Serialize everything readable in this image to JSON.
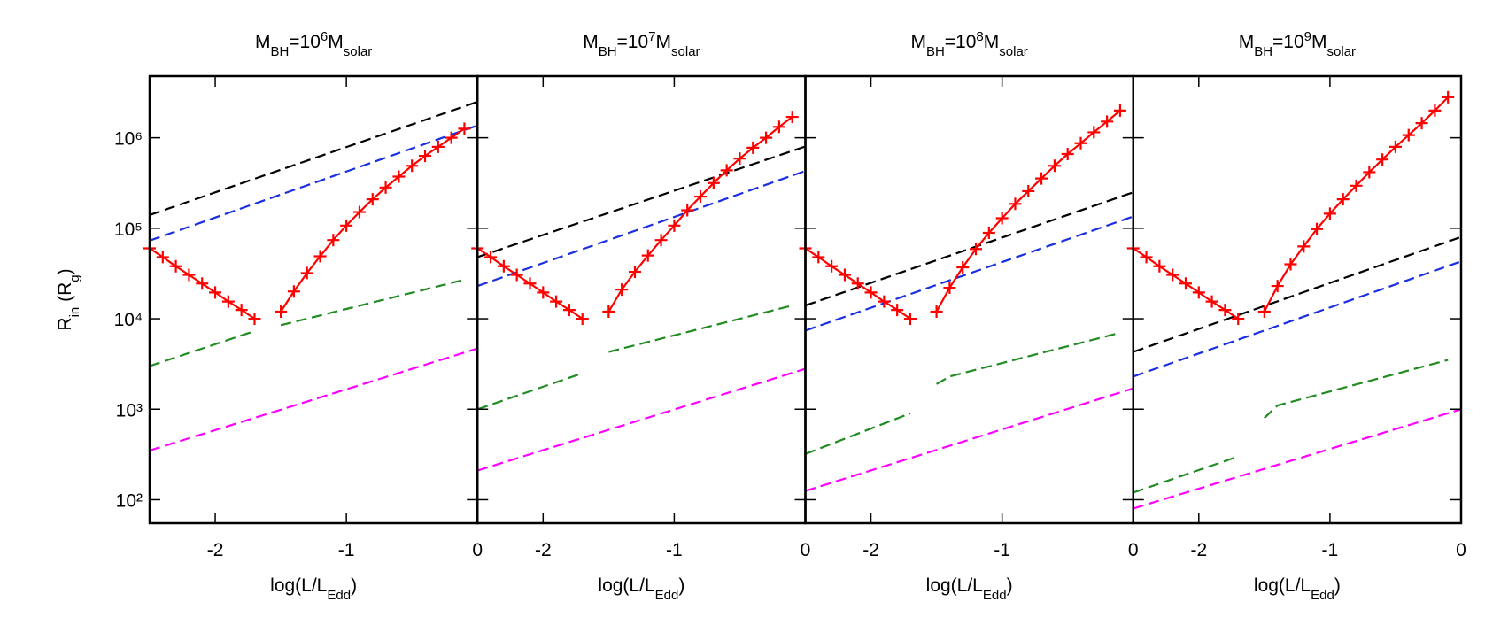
{
  "chart_data": [
    {
      "type": "line",
      "title": [
        "M",
        "BH",
        "=10",
        "6",
        "M",
        "solar"
      ],
      "xlabel": [
        "log(L/L",
        "Edd",
        ")"
      ],
      "ylabel": [
        "R",
        "in",
        " (R",
        "g",
        ")"
      ],
      "xlim": [
        -2.5,
        0
      ],
      "xticks": [
        -2,
        -1,
        0
      ],
      "ylim": [
        55,
        4800000
      ],
      "log_y": true,
      "yticks": [
        {
          "value": 100,
          "label": "10²"
        },
        {
          "value": 1000,
          "label": "10³"
        },
        {
          "value": 10000,
          "label": "10⁴"
        },
        {
          "value": 100000,
          "label": "10⁵"
        },
        {
          "value": 1000000,
          "label": "10⁶"
        }
      ],
      "series": [
        {
          "color": "#000000",
          "dash": true,
          "x": [
            -2.5,
            0
          ],
          "values": [
            140000,
            2500000
          ]
        },
        {
          "color": "#1a2fe0",
          "dash": true,
          "x": [
            -2.5,
            0
          ],
          "values": [
            73000,
            1370000
          ]
        },
        {
          "color": "#228b22",
          "dash": true,
          "x": [
            -2.5,
            -1.7,
            -1.6,
            -1.5,
            -0.1
          ],
          "values": [
            3000,
            7300,
            null,
            8500,
            27000
          ]
        },
        {
          "color": "#ff00ff",
          "dash": true,
          "x": [
            -2.5,
            0
          ],
          "values": [
            350,
            4700
          ]
        },
        {
          "color": "#ff0000",
          "marker": "+",
          "x": [
            -2.5,
            -2.4,
            -2.3,
            -2.2,
            -2.1,
            -2.0,
            -1.9,
            -1.8,
            -1.7,
            -1.6,
            -1.5,
            -1.4,
            -1.3,
            -1.2,
            -1.1,
            -1.0,
            -0.9,
            -0.8,
            -0.7,
            -0.6,
            -0.5,
            -0.4,
            -0.3,
            -0.2,
            -0.1
          ],
          "values": [
            60000,
            48000,
            38000,
            30500,
            24500,
            19500,
            15500,
            12500,
            10000,
            null,
            12000,
            20000,
            32000,
            49000,
            74000,
            107000,
            151000,
            209000,
            282000,
            372000,
            490000,
            631000,
            794000,
            1000000,
            1260000
          ]
        }
      ]
    },
    {
      "type": "line",
      "title": [
        "M",
        "BH",
        "=10",
        "7",
        "M",
        "solar"
      ],
      "xlabel": [
        "log(L/L",
        "Edd",
        ")"
      ],
      "xlim": [
        -2.5,
        0
      ],
      "xticks": [
        -2,
        -1,
        0
      ],
      "ylim": [
        55,
        4800000
      ],
      "log_y": true,
      "yticks": [
        100,
        1000,
        10000,
        100000,
        1000000
      ],
      "series": [
        {
          "color": "#000000",
          "dash": true,
          "x": [
            -2.5,
            0
          ],
          "values": [
            48000,
            800000
          ]
        },
        {
          "color": "#1a2fe0",
          "dash": true,
          "x": [
            -2.5,
            0
          ],
          "values": [
            23000,
            430000
          ]
        },
        {
          "color": "#228b22",
          "dash": true,
          "x": [
            -2.5,
            -1.7,
            -1.6,
            -1.5,
            -0.1
          ],
          "values": [
            1000,
            2500,
            null,
            4300,
            14000
          ]
        },
        {
          "color": "#ff00ff",
          "dash": true,
          "x": [
            -2.5,
            0
          ],
          "values": [
            210,
            2800
          ]
        },
        {
          "color": "#ff0000",
          "marker": "+",
          "x": [
            -2.5,
            -2.4,
            -2.3,
            -2.2,
            -2.1,
            -2.0,
            -1.9,
            -1.8,
            -1.7,
            -1.6,
            -1.5,
            -1.4,
            -1.3,
            -1.2,
            -1.1,
            -1.0,
            -0.9,
            -0.8,
            -0.7,
            -0.6,
            -0.5,
            -0.4,
            -0.3,
            -0.2,
            -0.1
          ],
          "values": [
            60000,
            48000,
            38000,
            30500,
            24500,
            19500,
            15500,
            12500,
            10000,
            null,
            12000,
            21000,
            33000,
            50000,
            74000,
            107000,
            158000,
            224000,
            316000,
            437000,
            589000,
            776000,
            1000000,
            1320000,
            1700000
          ]
        }
      ]
    },
    {
      "type": "line",
      "title": [
        "M",
        "BH",
        "=10",
        "8",
        "M",
        "solar"
      ],
      "xlabel": [
        "log(L/L",
        "Edd",
        ")"
      ],
      "xlim": [
        -2.5,
        0
      ],
      "xticks": [
        -2,
        -1,
        0
      ],
      "ylim": [
        55,
        4800000
      ],
      "log_y": true,
      "yticks": [
        100,
        1000,
        10000,
        100000,
        1000000
      ],
      "series": [
        {
          "color": "#000000",
          "dash": true,
          "x": [
            -2.5,
            0
          ],
          "values": [
            14000,
            250000
          ]
        },
        {
          "color": "#1a2fe0",
          "dash": true,
          "x": [
            -2.5,
            0
          ],
          "values": [
            7400,
            135000
          ]
        },
        {
          "color": "#228b22",
          "dash": true,
          "x": [
            -2.5,
            -1.7,
            -1.6,
            -1.5,
            -1.4,
            -0.1
          ],
          "values": [
            320,
            900,
            null,
            1900,
            2300,
            7000
          ]
        },
        {
          "color": "#ff00ff",
          "dash": true,
          "x": [
            -2.5,
            0
          ],
          "values": [
            125,
            1700
          ]
        },
        {
          "color": "#ff0000",
          "marker": "+",
          "x": [
            -2.5,
            -2.4,
            -2.3,
            -2.2,
            -2.1,
            -2.0,
            -1.9,
            -1.8,
            -1.7,
            -1.6,
            -1.5,
            -1.4,
            -1.3,
            -1.2,
            -1.1,
            -1.0,
            -0.9,
            -0.8,
            -0.7,
            -0.6,
            -0.5,
            -0.4,
            -0.3,
            -0.2,
            -0.1
          ],
          "values": [
            60000,
            48000,
            38000,
            30500,
            24500,
            19500,
            15500,
            12500,
            10000,
            null,
            12000,
            22000,
            37000,
            59000,
            89000,
            129000,
            186000,
            257000,
            355000,
            490000,
            661000,
            871000,
            1150000,
            1510000,
            2000000
          ]
        }
      ]
    },
    {
      "type": "line",
      "title": [
        "M",
        "BH",
        "=10",
        "9",
        "M",
        "solar"
      ],
      "xlabel": [
        "log(L/L",
        "Edd",
        ")"
      ],
      "xlim": [
        -2.5,
        0
      ],
      "xticks": [
        -2,
        -1,
        0
      ],
      "ylim": [
        55,
        4800000
      ],
      "log_y": true,
      "yticks": [
        100,
        1000,
        10000,
        100000,
        1000000
      ],
      "series": [
        {
          "color": "#000000",
          "dash": true,
          "x": [
            -2.5,
            0
          ],
          "values": [
            4300,
            80000
          ]
        },
        {
          "color": "#1a2fe0",
          "dash": true,
          "x": [
            -2.5,
            0
          ],
          "values": [
            2300,
            43000
          ]
        },
        {
          "color": "#228b22",
          "dash": true,
          "x": [
            -2.5,
            -1.7,
            -1.6,
            -1.5,
            -1.4,
            -0.1
          ],
          "values": [
            120,
            300,
            null,
            800,
            1100,
            3500
          ]
        },
        {
          "color": "#ff00ff",
          "dash": true,
          "x": [
            -2.5,
            0
          ],
          "values": [
            80,
            1000
          ]
        },
        {
          "color": "#ff0000",
          "marker": "+",
          "x": [
            -2.5,
            -2.4,
            -2.3,
            -2.2,
            -2.1,
            -2.0,
            -1.9,
            -1.8,
            -1.7,
            -1.6,
            -1.5,
            -1.4,
            -1.3,
            -1.2,
            -1.1,
            -1.0,
            -0.9,
            -0.8,
            -0.7,
            -0.6,
            -0.5,
            -0.4,
            -0.3,
            -0.2,
            -0.1
          ],
          "values": [
            60000,
            48000,
            38000,
            30500,
            24500,
            19500,
            15500,
            12500,
            10000,
            null,
            12000,
            23000,
            40000,
            63000,
            98000,
            145000,
            209000,
            295000,
            417000,
            575000,
            794000,
            1070000,
            1450000,
            2000000,
            2800000
          ]
        }
      ]
    }
  ]
}
